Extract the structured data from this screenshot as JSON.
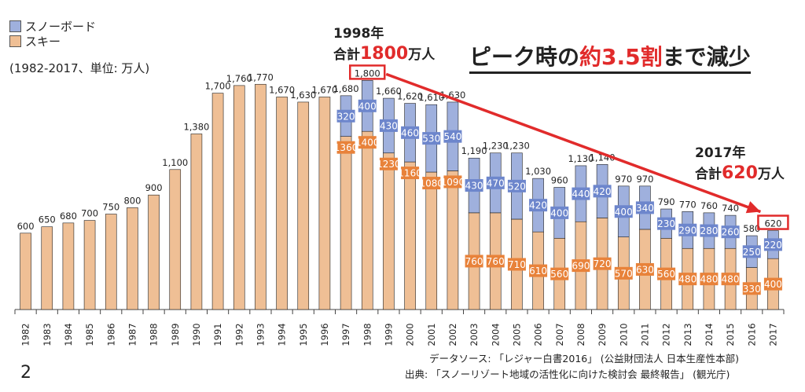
{
  "legend": {
    "snowboard": "スノーボード",
    "ski": "スキー",
    "note": "(1982-2017、単位: 万人)"
  },
  "colors": {
    "snowboard": "#9fb0dd",
    "snowboard_label_bg": "#6d86cc",
    "ski": "#efbf95",
    "ski_label_bg": "#e8823a",
    "accent": "#e12b2b"
  },
  "headline": {
    "part1": "ピーク時の",
    "part2": "約3.5割",
    "part3": "まで減少"
  },
  "callout_1998": {
    "year": "1998年",
    "prefix": "合計",
    "value": "1800",
    "suffix": "万人"
  },
  "callout_2017": {
    "year": "2017年",
    "prefix": "合計",
    "value": "620",
    "suffix": "万人"
  },
  "source": {
    "line1": "データソース: 「レジャー白書2016」 (公益財団法人 日本生産性本部)",
    "line2": "出典: 「スノーリゾート地域の活性化に向けた検討会 最終報告」 (観光庁)"
  },
  "page_number": "2",
  "chart_data": {
    "type": "bar",
    "stacked": true,
    "categories": [
      "1982",
      "1983",
      "1984",
      "1985",
      "1986",
      "1987",
      "1988",
      "1989",
      "1990",
      "1991",
      "1992",
      "1993",
      "1994",
      "1995",
      "1996",
      "1997",
      "1998",
      "1999",
      "2000",
      "2001",
      "2002",
      "2003",
      "2004",
      "2005",
      "2006",
      "2007",
      "2008",
      "2009",
      "2010",
      "2011",
      "2012",
      "2013",
      "2014",
      "2015",
      "2016",
      "2017"
    ],
    "series": [
      {
        "name": "スキー",
        "values": [
          600,
          650,
          680,
          700,
          750,
          800,
          900,
          1100,
          1380,
          1700,
          1760,
          1770,
          1670,
          1630,
          1670,
          1360,
          1400,
          1230,
          1160,
          1080,
          1090,
          760,
          760,
          710,
          610,
          560,
          690,
          720,
          570,
          630,
          560,
          480,
          480,
          480,
          330,
          400
        ]
      },
      {
        "name": "スノーボード",
        "values": [
          0,
          0,
          0,
          0,
          0,
          0,
          0,
          0,
          0,
          0,
          0,
          0,
          0,
          0,
          0,
          320,
          400,
          430,
          460,
          530,
          540,
          430,
          470,
          520,
          420,
          400,
          440,
          420,
          400,
          340,
          230,
          290,
          280,
          260,
          250,
          220
        ]
      }
    ],
    "total_labels": [
      "600",
      "650",
      "680",
      "700",
      "750",
      "800",
      "900",
      "1,100",
      "1,380",
      "1,700",
      "1,760",
      "1,770",
      "1,670",
      "1,630",
      "1,670",
      "1,680",
      "1,800",
      "1,660",
      "1,620",
      "1,610",
      "1,630",
      "1,190",
      "1,230",
      "1,230",
      "1,030",
      "960",
      "1,130",
      "1,140",
      "970",
      "970",
      "790",
      "770",
      "760",
      "740",
      "580",
      "620"
    ],
    "title": "",
    "xlabel": "",
    "ylabel": "",
    "ylim": [
      0,
      1900
    ],
    "grid": false,
    "legend_position": "top-left"
  }
}
